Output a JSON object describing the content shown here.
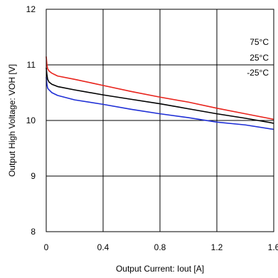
{
  "chart_data": {
    "type": "line",
    "title": "",
    "xlabel": "Output Current: Iout [A]",
    "ylabel": "Output High Voltage: VOH [V]",
    "xlim": [
      0,
      1.6
    ],
    "ylim": [
      8,
      12
    ],
    "xticks": [
      "0",
      "0.4",
      "0.8",
      "1.2",
      "1.6"
    ],
    "yticks": [
      "8",
      "9",
      "10",
      "11",
      "12"
    ],
    "grid": true,
    "legend_placement": "top-right",
    "legend": [
      "75°C",
      "25°C",
      "-25°C"
    ],
    "series": [
      {
        "name": "75°C",
        "color": "#e8231c",
        "x": [
          0,
          0.005,
          0.01,
          0.02,
          0.04,
          0.08,
          0.2,
          0.4,
          0.6,
          0.8,
          1.0,
          1.2,
          1.4,
          1.6
        ],
        "y": [
          11.15,
          11.0,
          10.93,
          10.89,
          10.85,
          10.8,
          10.74,
          10.63,
          10.52,
          10.42,
          10.33,
          10.22,
          10.12,
          10.02
        ]
      },
      {
        "name": "25°C",
        "color": "#000000",
        "x": [
          0,
          0.005,
          0.01,
          0.02,
          0.04,
          0.08,
          0.2,
          0.4,
          0.6,
          0.8,
          1.0,
          1.2,
          1.4,
          1.6
        ],
        "y": [
          10.95,
          10.82,
          10.74,
          10.69,
          10.65,
          10.61,
          10.55,
          10.46,
          10.38,
          10.3,
          10.21,
          10.12,
          10.04,
          9.95
        ]
      },
      {
        "name": "-25°C",
        "color": "#1f2fd6",
        "x": [
          0,
          0.005,
          0.01,
          0.02,
          0.04,
          0.08,
          0.2,
          0.4,
          0.6,
          0.8,
          1.0,
          1.2,
          1.4,
          1.6
        ],
        "y": [
          10.78,
          10.65,
          10.58,
          10.55,
          10.5,
          10.45,
          10.37,
          10.29,
          10.2,
          10.12,
          10.05,
          9.97,
          9.92,
          9.84
        ]
      }
    ]
  }
}
